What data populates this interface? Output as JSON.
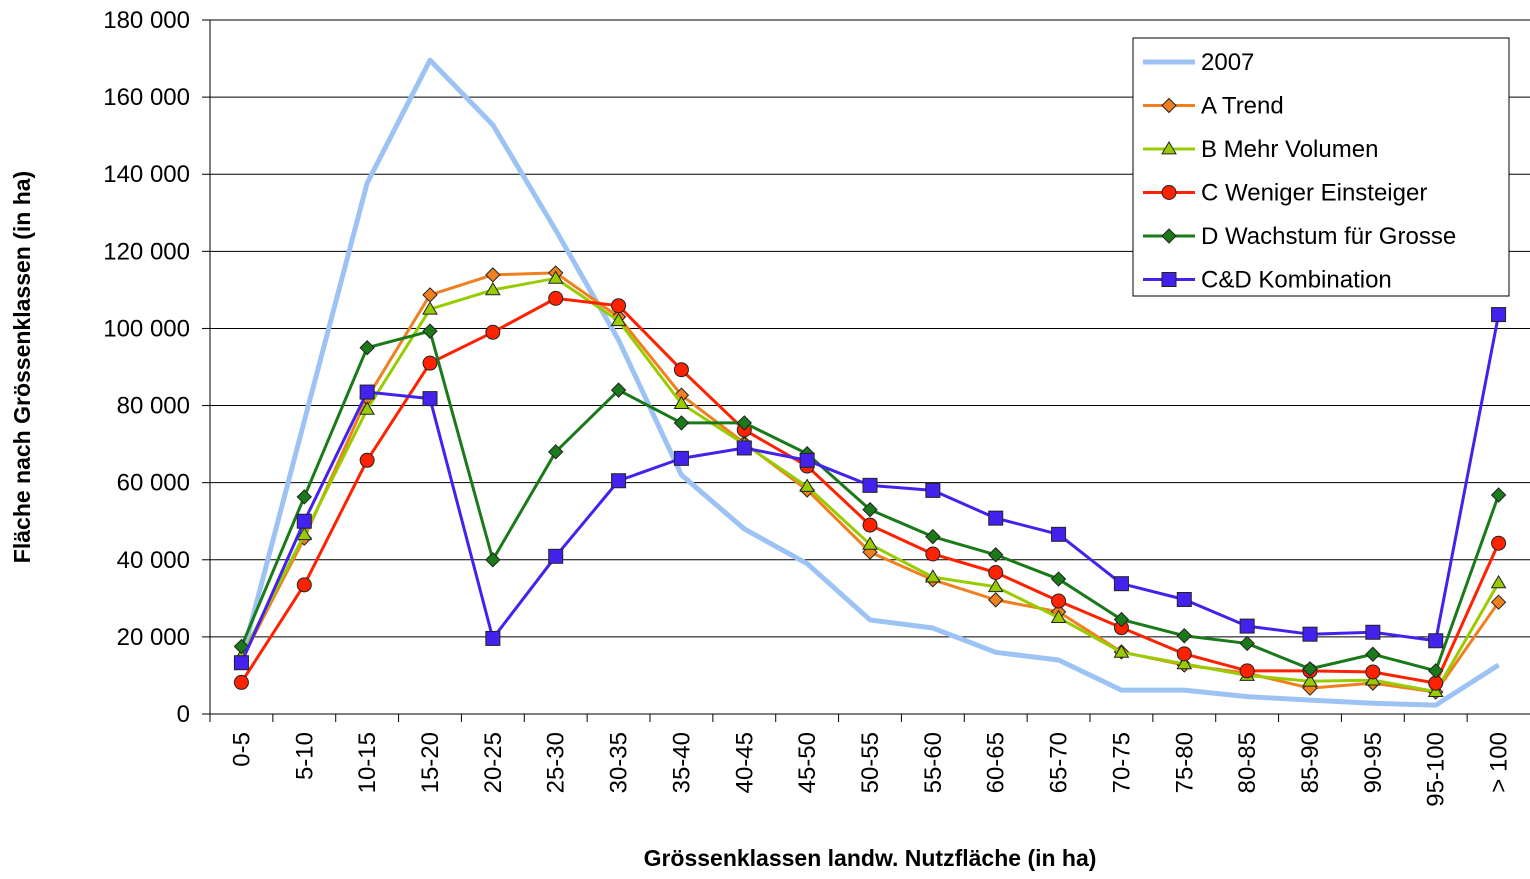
{
  "chart_data": {
    "type": "line",
    "y_label": "Fläche nach Grössenklassen (in ha)",
    "x_label": "Grössenklassen landw. Nutzfläche (in ha)",
    "categories": [
      "0-5",
      "5-10",
      "10-15",
      "15-20",
      "20-25",
      "25-30",
      "30-35",
      "35-40",
      "40-45",
      "45-50",
      "50-55",
      "55-60",
      "60-65",
      "65-70",
      "70-75",
      "75-80",
      "80-85",
      "85-90",
      "90-95",
      "95-100",
      "> 100"
    ],
    "ylim": [
      0,
      180000
    ],
    "yticks": [
      0,
      {
        "value": 20000,
        "label": "20 000"
      },
      {
        "value": 40000,
        "label": "40 000"
      },
      {
        "value": 60000,
        "label": "60 000"
      },
      {
        "value": 80000,
        "label": "80 000"
      },
      {
        "value": 100000,
        "label": "100 000"
      },
      {
        "value": 120000,
        "label": "120 000"
      },
      {
        "value": 140000,
        "label": "140 000"
      },
      {
        "value": 160000,
        "label": "160 000"
      },
      {
        "value": 180000,
        "label": "180 000"
      }
    ],
    "grid": true,
    "legend": "top-right",
    "series": [
      {
        "name": "2007",
        "color": "#9dc3f5",
        "marker": null,
        "values": [
          14000,
          76000,
          137700,
          169600,
          152800,
          125500,
          97000,
          62000,
          48000,
          39000,
          24400,
          22300,
          16000,
          14000,
          6200,
          6200,
          4500,
          3600,
          2800,
          2300,
          12700
        ]
      },
      {
        "name": "A Trend",
        "color": "#f07f1f",
        "marker": "diamond",
        "values": [
          14000,
          45600,
          82000,
          108700,
          113900,
          114400,
          103000,
          82700,
          70300,
          58100,
          42000,
          34800,
          29600,
          26500,
          16100,
          12700,
          10600,
          6700,
          8000,
          5700,
          29000
        ]
      },
      {
        "name": "B Mehr Volumen",
        "color": "#99cc00",
        "marker": "triangle",
        "values": [
          15000,
          46500,
          79000,
          105000,
          110000,
          113000,
          102000,
          80500,
          70000,
          59000,
          44000,
          35500,
          33000,
          25000,
          16000,
          13000,
          10000,
          8500,
          8800,
          5800,
          34000
        ]
      },
      {
        "name": "C Weniger Einsteiger",
        "color": "#ff2200",
        "marker": "circle",
        "values": [
          8200,
          33500,
          65800,
          91000,
          99000,
          107800,
          105900,
          89300,
          73700,
          64300,
          49000,
          41500,
          36700,
          29300,
          22400,
          15600,
          11200,
          11200,
          10900,
          8000,
          44300
        ]
      },
      {
        "name": "D Wachstum für Grosse",
        "color": "#1a7a1a",
        "marker": "diamond",
        "values": [
          17500,
          56300,
          95000,
          99300,
          40000,
          68000,
          84000,
          75500,
          75500,
          67500,
          53000,
          46000,
          41300,
          35000,
          24500,
          20300,
          18300,
          11700,
          15500,
          11200,
          56800
        ]
      },
      {
        "name": "C&D Kombination",
        "color": "#4422ee",
        "marker": "square",
        "values": [
          13300,
          50000,
          83500,
          81800,
          19600,
          40900,
          60500,
          66300,
          69000,
          65800,
          59300,
          58000,
          50800,
          46600,
          33800,
          29700,
          22800,
          20700,
          21200,
          19000,
          103600
        ]
      }
    ]
  }
}
